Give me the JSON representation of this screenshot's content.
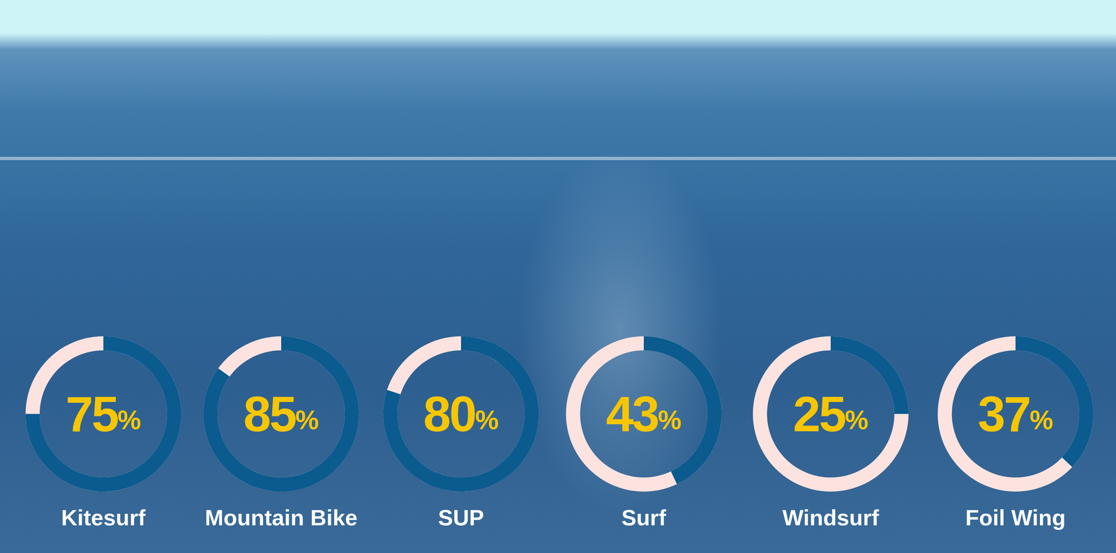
{
  "chart_data": {
    "type": "donut",
    "categories": [
      "Kitesurf",
      "Mountain Bike",
      "SUP",
      "Surf",
      "Windsurf",
      "Foil Wing"
    ],
    "values": [
      75,
      85,
      80,
      43,
      25,
      37
    ],
    "value_labels": [
      "75%",
      "85%",
      "80%",
      "43%",
      "25%",
      "37%"
    ],
    "ylim": [
      0,
      100
    ],
    "color": "#0b5b8e",
    "data_labels": true
  }
}
